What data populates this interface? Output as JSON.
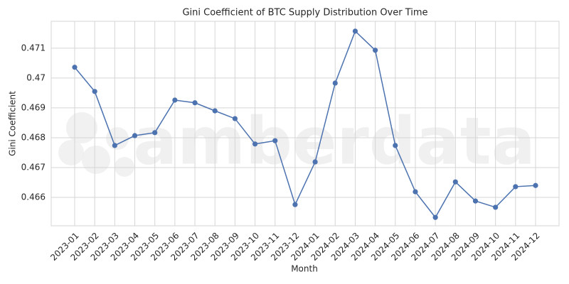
{
  "chart_data": {
    "type": "line",
    "title": "Gini Coefficient of BTC Supply Distribution Over Time",
    "x_label": "Month",
    "y_label": "Gini Coefficient",
    "watermark": "amberdata",
    "categories": [
      "2023-01",
      "2023-02",
      "2023-03",
      "2023-04",
      "2023-05",
      "2023-06",
      "2023-07",
      "2023-08",
      "2023-09",
      "2023-10",
      "2023-11",
      "2023-12",
      "2024-01",
      "2024-02",
      "2024-03",
      "2024-04",
      "2024-05",
      "2024-06",
      "2024-07",
      "2024-08",
      "2024-09",
      "2024-10",
      "2024-11",
      "2024-12"
    ],
    "series": [
      {
        "name": "Gini Coefficient",
        "color": "#4c72b0",
        "values": [
          0.47036,
          0.46955,
          0.46774,
          0.46807,
          0.46817,
          0.46926,
          0.46917,
          0.4689,
          0.46864,
          0.46779,
          0.4679,
          0.46576,
          0.46719,
          0.46983,
          0.47157,
          0.47093,
          0.46774,
          0.46619,
          0.46533,
          0.46652,
          0.46588,
          0.46567,
          0.46636,
          0.4664
        ]
      }
    ],
    "ylim": [
      0.46505,
      0.4719
    ],
    "yticks": [
      0.466,
      0.467,
      0.468,
      0.469,
      0.47,
      0.471
    ],
    "grid": true
  }
}
